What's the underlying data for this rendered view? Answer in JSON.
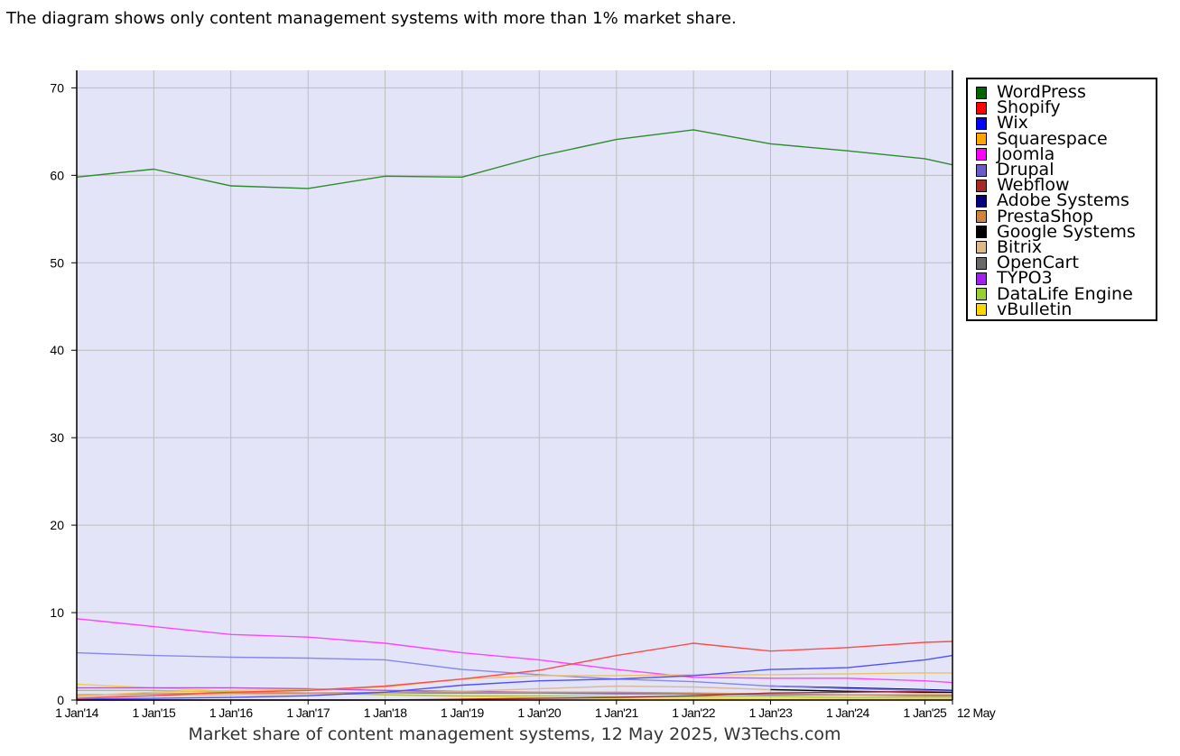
{
  "intro_text": "The diagram shows only content management systems with more than 1% market share.",
  "chart_data": {
    "type": "line",
    "title": "",
    "caption": "Market share of content management systems, 12 May 2025, W3Techs.com",
    "xlabel": "",
    "ylabel": "",
    "ylim": [
      0,
      72
    ],
    "y_ticks": [
      0,
      10,
      20,
      30,
      40,
      50,
      60,
      70
    ],
    "x_ticks": [
      {
        "label": "1 Jan'14",
        "x": "2014-01-01"
      },
      {
        "label": "1 Jan'15",
        "x": "2015-01-01"
      },
      {
        "label": "1 Jan'16",
        "x": "2016-01-01"
      },
      {
        "label": "1 Jan'17",
        "x": "2017-01-01"
      },
      {
        "label": "1 Jan'18",
        "x": "2018-01-01"
      },
      {
        "label": "1 Jan'19",
        "x": "2019-01-01"
      },
      {
        "label": "1 Jan'20",
        "x": "2020-01-01"
      },
      {
        "label": "1 Jan'21",
        "x": "2021-01-01"
      },
      {
        "label": "1 Jan'22",
        "x": "2022-01-01"
      },
      {
        "label": "1 Jan'23",
        "x": "2023-01-01"
      },
      {
        "label": "1 Jan'24",
        "x": "2024-01-01"
      },
      {
        "label": "1 Jan'25",
        "x": "2025-01-01"
      },
      {
        "label": "12 May",
        "x": "2025-05-12"
      }
    ],
    "x": [
      "2014-01-01",
      "2015-01-01",
      "2016-01-01",
      "2017-01-01",
      "2018-01-01",
      "2019-01-01",
      "2020-01-01",
      "2021-01-01",
      "2022-01-01",
      "2023-01-01",
      "2024-01-01",
      "2025-01-01",
      "2025-05-12"
    ],
    "grid": true,
    "legend_position": "right",
    "background_color": "#e4e4f8",
    "series": [
      {
        "name": "WordPress",
        "color": "#2e8b2e",
        "swatch": "#006400",
        "values": [
          59.8,
          60.7,
          58.8,
          58.5,
          59.9,
          59.8,
          62.2,
          64.1,
          65.2,
          63.6,
          62.8,
          61.9,
          61.2
        ]
      },
      {
        "name": "Shopify",
        "color": "#ff4a4a",
        "swatch": "#ff0000",
        "values": [
          0.2,
          0.5,
          0.9,
          1.1,
          1.6,
          2.4,
          3.4,
          5.1,
          6.5,
          5.6,
          6.0,
          6.6,
          6.7
        ]
      },
      {
        "name": "Wix",
        "color": "#5050ff",
        "swatch": "#0000ff",
        "values": [
          0.1,
          0.2,
          0.3,
          0.5,
          0.9,
          1.7,
          2.2,
          2.4,
          2.8,
          3.5,
          3.7,
          4.6,
          5.1
        ]
      },
      {
        "name": "Squarespace",
        "color": "#f0c060",
        "swatch": "#ffa500",
        "values": [
          0.5,
          0.9,
          1.1,
          1.2,
          1.5,
          2.4,
          2.8,
          2.8,
          2.9,
          2.9,
          3.0,
          3.1,
          3.1
        ]
      },
      {
        "name": "Joomla",
        "color": "#ff44ff",
        "swatch": "#ff00ff",
        "values": [
          9.3,
          8.4,
          7.5,
          7.2,
          6.5,
          5.4,
          4.6,
          3.5,
          2.6,
          2.5,
          2.5,
          2.2,
          2.0
        ]
      },
      {
        "name": "Drupal",
        "color": "#8888ee",
        "swatch": "#6a5acd",
        "values": [
          5.4,
          5.1,
          4.9,
          4.8,
          4.6,
          3.5,
          2.9,
          2.4,
          2.1,
          1.6,
          1.3,
          1.1,
          1.0
        ]
      },
      {
        "name": "Webflow",
        "color": "#a03030",
        "swatch": "#a52a2a",
        "values": [
          0.0,
          0.0,
          0.0,
          0.0,
          0.0,
          0.1,
          0.2,
          0.3,
          0.5,
          0.8,
          0.9,
          1.0,
          1.0
        ]
      },
      {
        "name": "Adobe Systems",
        "color": "#000080",
        "swatch": "#000080",
        "values": [
          null,
          null,
          null,
          null,
          null,
          null,
          null,
          null,
          null,
          1.6,
          1.4,
          1.2,
          1.1
        ]
      },
      {
        "name": "PrestaShop",
        "color": "#d09060",
        "swatch": "#cd853f",
        "values": [
          0.6,
          0.7,
          0.8,
          0.8,
          0.9,
          0.9,
          0.9,
          0.9,
          0.8,
          0.7,
          0.6,
          0.6,
          0.6
        ]
      },
      {
        "name": "Google Systems",
        "color": "#000000",
        "swatch": "#000000",
        "values": [
          null,
          null,
          null,
          null,
          null,
          null,
          null,
          null,
          null,
          1.2,
          1.0,
          0.9,
          0.9
        ]
      },
      {
        "name": "Bitrix",
        "color": "#d8b898",
        "swatch": "#deb887",
        "values": [
          0.4,
          0.5,
          0.6,
          0.7,
          0.8,
          1.0,
          1.3,
          1.6,
          1.5,
          1.2,
          1.0,
          0.8,
          0.8
        ]
      },
      {
        "name": "OpenCart",
        "color": "#808080",
        "swatch": "#696969",
        "values": [
          0.6,
          0.7,
          0.8,
          0.8,
          0.8,
          0.8,
          0.8,
          0.7,
          0.7,
          0.6,
          0.6,
          0.6,
          0.6
        ]
      },
      {
        "name": "TYPO3",
        "color": "#aa55dd",
        "swatch": "#a020f0",
        "values": [
          1.4,
          1.4,
          1.4,
          1.3,
          1.1,
          1.0,
          0.9,
          0.8,
          0.7,
          0.6,
          0.6,
          0.5,
          0.5
        ]
      },
      {
        "name": "DataLife Engine",
        "color": "#a8c840",
        "swatch": "#9acd32",
        "values": [
          1.1,
          1.1,
          0.9,
          0.8,
          0.6,
          0.5,
          0.5,
          0.4,
          0.4,
          0.4,
          0.3,
          0.3,
          0.3
        ]
      },
      {
        "name": "vBulletin",
        "color": "#f0d040",
        "swatch": "#ffd700",
        "values": [
          1.8,
          1.4,
          1.0,
          0.8,
          0.6,
          0.4,
          0.3,
          0.2,
          0.2,
          0.1,
          0.1,
          0.1,
          0.1
        ]
      }
    ]
  }
}
